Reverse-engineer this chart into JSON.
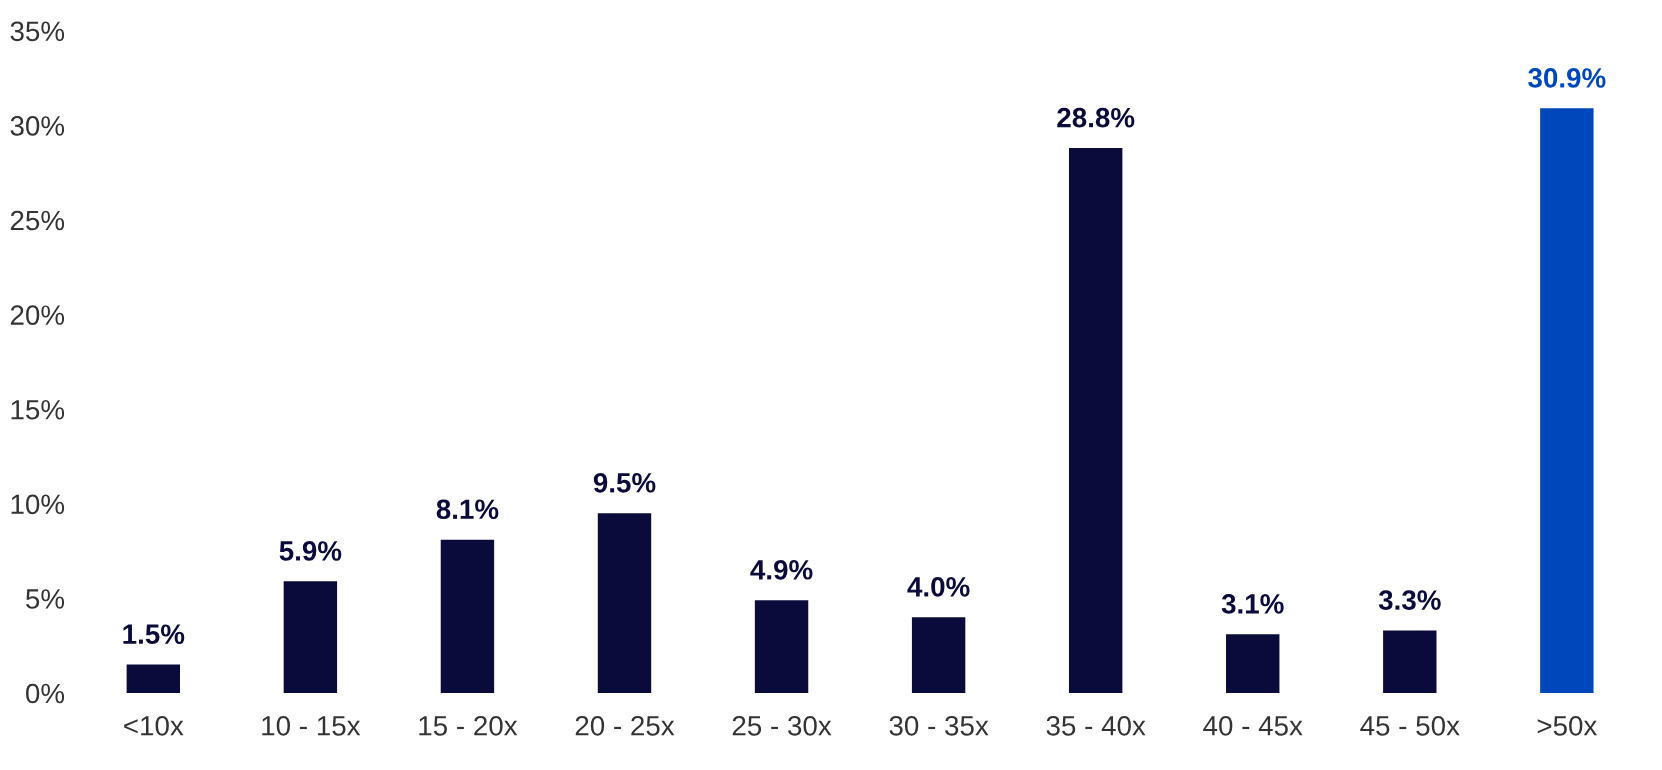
{
  "chart_data": {
    "type": "bar",
    "categories": [
      "<10x",
      "10 - 15x",
      "15 - 20x",
      "20 - 25x",
      "25 - 30x",
      "30 - 35x",
      "35 - 40x",
      "40 - 45x",
      "45 - 50x",
      ">50x"
    ],
    "values": [
      1.5,
      5.9,
      8.1,
      9.5,
      4.9,
      4.0,
      28.8,
      3.1,
      3.3,
      30.9
    ],
    "colors": [
      "#0b0b3b",
      "#0b0b3b",
      "#0b0b3b",
      "#0b0b3b",
      "#0b0b3b",
      "#0b0b3b",
      "#0b0b3b",
      "#0b0b3b",
      "#0b0b3b",
      "#0047bb"
    ],
    "value_labels": [
      "1.5%",
      "5.9%",
      "8.1%",
      "9.5%",
      "4.9%",
      "4.0%",
      "28.8%",
      "3.1%",
      "3.3%",
      "30.9%"
    ],
    "ylim": [
      0,
      35
    ],
    "yticks": [
      {
        "value": 0,
        "label": "0%"
      },
      {
        "value": 5,
        "label": "5%"
      },
      {
        "value": 10,
        "label": "10%"
      },
      {
        "value": 15,
        "label": "15%"
      },
      {
        "value": 20,
        "label": "20%"
      },
      {
        "value": 25,
        "label": "25%"
      },
      {
        "value": 30,
        "label": "30%"
      },
      {
        "value": 35,
        "label": "35%"
      }
    ],
    "grid": false,
    "legend": false
  }
}
